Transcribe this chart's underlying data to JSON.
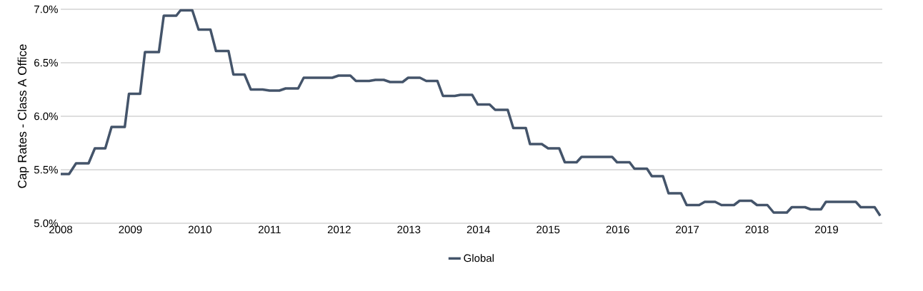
{
  "chart_data": {
    "type": "line",
    "ylabel": "Cap Rates - Class A Office",
    "x": [
      2008.0,
      2008.12,
      2008.22,
      2008.4,
      2008.49,
      2008.64,
      2008.73,
      2008.92,
      2008.98,
      2009.14,
      2009.21,
      2009.41,
      2009.48,
      2009.66,
      2009.72,
      2009.89,
      2009.98,
      2010.15,
      2010.23,
      2010.41,
      2010.48,
      2010.64,
      2010.73,
      2010.9,
      2011.0,
      2011.14,
      2011.23,
      2011.41,
      2011.49,
      2011.9,
      2011.99,
      2012.16,
      2012.24,
      2012.43,
      2012.52,
      2012.64,
      2012.73,
      2012.91,
      2012.99,
      2013.16,
      2013.25,
      2013.41,
      2013.49,
      2013.66,
      2013.74,
      2013.91,
      2013.99,
      2014.16,
      2014.24,
      2014.42,
      2014.5,
      2014.68,
      2014.74,
      2014.91,
      2015.0,
      2015.16,
      2015.24,
      2015.41,
      2015.48,
      2015.92,
      2015.99,
      2016.17,
      2016.24,
      2016.42,
      2016.49,
      2016.65,
      2016.73,
      2016.91,
      2016.99,
      2017.17,
      2017.25,
      2017.4,
      2017.49,
      2017.67,
      2017.75,
      2017.92,
      2018.0,
      2018.15,
      2018.24,
      2018.43,
      2018.5,
      2018.69,
      2018.77,
      2018.92,
      2018.99,
      2019.42,
      2019.49,
      2019.69,
      2019.77
    ],
    "series": [
      {
        "name": "Global",
        "color": "#44546a",
        "values": [
          5.46,
          5.46,
          5.56,
          5.56,
          5.7,
          5.7,
          5.9,
          5.9,
          6.21,
          6.21,
          6.6,
          6.6,
          6.94,
          6.94,
          6.99,
          6.99,
          6.81,
          6.81,
          6.61,
          6.61,
          6.39,
          6.39,
          6.25,
          6.25,
          6.24,
          6.24,
          6.26,
          6.26,
          6.36,
          6.36,
          6.38,
          6.38,
          6.33,
          6.33,
          6.34,
          6.34,
          6.32,
          6.32,
          6.36,
          6.36,
          6.33,
          6.33,
          6.19,
          6.19,
          6.2,
          6.2,
          6.11,
          6.11,
          6.06,
          6.06,
          5.89,
          5.89,
          5.74,
          5.74,
          5.7,
          5.7,
          5.57,
          5.57,
          5.62,
          5.62,
          5.57,
          5.57,
          5.51,
          5.51,
          5.44,
          5.44,
          5.28,
          5.28,
          5.17,
          5.17,
          5.2,
          5.2,
          5.17,
          5.17,
          5.21,
          5.21,
          5.17,
          5.17,
          5.1,
          5.1,
          5.15,
          5.15,
          5.13,
          5.13,
          5.2,
          5.2,
          5.15,
          5.15,
          5.07
        ]
      }
    ],
    "xlim": [
      2008,
      2019.8
    ],
    "xticks": [
      2008,
      2009,
      2010,
      2011,
      2012,
      2013,
      2014,
      2015,
      2016,
      2017,
      2018,
      2019
    ],
    "ylim": [
      5.0,
      7.0
    ],
    "yticks": [
      {
        "value": 5.0,
        "label": "5.0%"
      },
      {
        "value": 5.5,
        "label": "5.5%"
      },
      {
        "value": 6.0,
        "label": "6.0%"
      },
      {
        "value": 6.5,
        "label": "6.5%"
      },
      {
        "value": 7.0,
        "label": "7.0%"
      }
    ],
    "grid": "y",
    "legend": "bottom",
    "marker": "none",
    "line_style": "solid"
  }
}
